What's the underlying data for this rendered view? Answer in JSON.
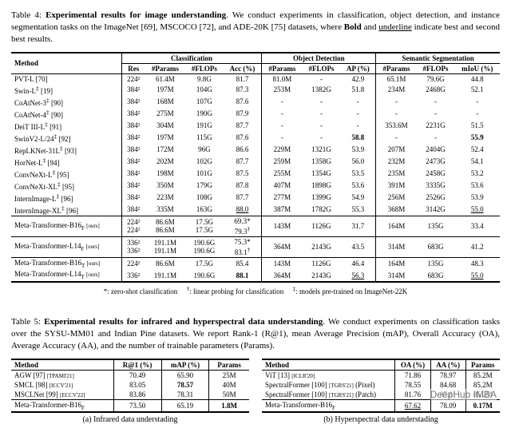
{
  "table4": {
    "caption": "Table 4: <b>Experimental results for image understanding</b>. We conduct experiments in classification, object detection, and instance segmentation tasks on the ImageNet [69], MSCOCO [72], and ADE-20K [75] datasets, where <b>Bold</b> and <u>underline</u> indicate best and second best results.",
    "colgroups": [
      "Classification",
      "Object Detection",
      "Semantic Segmentation"
    ],
    "cols_cls": [
      "Res",
      "#Params",
      "#FLOPs",
      "Acc (%)"
    ],
    "cols_det": [
      "#Params",
      "#FLOPs",
      "AP (%)"
    ],
    "cols_seg": [
      "#Params",
      "#FLOPs",
      "mIoU (%)"
    ],
    "rows": [
      {
        "m": "PVT-L [70]",
        "r": "224²",
        "p": "61.4M",
        "f": "9.8G",
        "a": "81.7",
        "dp": "81.0M",
        "df": "-",
        "da": "42.9",
        "sp": "65.1M",
        "sf": "79.6G",
        "si": "44.8"
      },
      {
        "m": "Swin-L<sup>‡</sup> [19]",
        "r": "384²",
        "p": "197M",
        "f": "104G",
        "a": "87.3",
        "dp": "253M",
        "df": "1382G",
        "da": "51.8",
        "sp": "234M",
        "sf": "2468G",
        "si": "52.1"
      },
      {
        "m": "CoAtNet-3<sup>‡</sup> [90]",
        "r": "384²",
        "p": "168M",
        "f": "107G",
        "a": "87.6",
        "dp": "-",
        "df": "-",
        "da": "-",
        "sp": "-",
        "sf": "-",
        "si": "-"
      },
      {
        "m": "CoAtNet-4<sup>‡</sup> [90]",
        "r": "384²",
        "p": "275M",
        "f": "190G",
        "a": "87.9",
        "dp": "-",
        "df": "-",
        "da": "-",
        "sp": "-",
        "sf": "-",
        "si": "-"
      },
      {
        "m": "DeiT III-L<sup>‡</sup> [91]",
        "r": "384²",
        "p": "304M",
        "f": "191G",
        "a": "87.7",
        "dp": "-",
        "df": "-",
        "da": "-",
        "sp": "353.6M",
        "sf": "2231G",
        "si": "51.5"
      },
      {
        "m": "SwinV2-L/24<sup>‡</sup> [92]",
        "r": "384²",
        "p": "197M",
        "f": "115G",
        "a": "87.6",
        "dp": "-",
        "df": "-",
        "da": "<b>58.8</b>",
        "sp": "-",
        "sf": "-",
        "si": "<b>55.9</b>"
      },
      {
        "m": "RepLKNet-31L<sup>‡</sup> [93]",
        "r": "384²",
        "p": "172M",
        "f": "96G",
        "a": "86.6",
        "dp": "229M",
        "df": "1321G",
        "da": "53.9",
        "sp": "207M",
        "sf": "2404G",
        "si": "52.4"
      },
      {
        "m": "HorNet-L<sup>‡</sup> [94]",
        "r": "384²",
        "p": "202M",
        "f": "102G",
        "a": "87.7",
        "dp": "259M",
        "df": "1358G",
        "da": "56.0",
        "sp": "232M",
        "sf": "2473G",
        "si": "54.1"
      },
      {
        "m": "ConvNeXt-L<sup>‡</sup> [95]",
        "r": "384²",
        "p": "198M",
        "f": "101G",
        "a": "87.5",
        "dp": "255M",
        "df": "1354G",
        "da": "53.5",
        "sp": "235M",
        "sf": "2458G",
        "si": "53.2"
      },
      {
        "m": "ConvNeXt-XL<sup>‡</sup> [95]",
        "r": "384²",
        "p": "350M",
        "f": "179G",
        "a": "87.8",
        "dp": "407M",
        "df": "1898G",
        "da": "53.6",
        "sp": "391M",
        "sf": "3335G",
        "si": "53.6"
      },
      {
        "m": "InternImage-L<sup>‡</sup> [96]",
        "r": "384²",
        "p": "223M",
        "f": "108G",
        "a": "87.7",
        "dp": "277M",
        "df": "1399G",
        "da": "54.9",
        "sp": "256M",
        "sf": "2526G",
        "si": "53.9"
      },
      {
        "m": "InternImage-XL<sup>‡</sup> [96]",
        "r": "384²",
        "p": "335M",
        "f": "163G",
        "a": "<u>88.0</u>",
        "dp": "387M",
        "df": "1782G",
        "da": "55.3",
        "sp": "368M",
        "sf": "3142G",
        "si": "<u>55.0</u>",
        "rule": true
      },
      {
        "m": "Meta-Transformer-B16<sub>F</sub> <span class=\"sub7\">[ours]</span>",
        "r": "224²<br>224²",
        "p": "86.6M<br>86.6M",
        "f": "17.5G<br>17.5G",
        "a": "69.3*<br>79.3<sup>†</sup>",
        "dp": "143M",
        "df": "1126G",
        "da": "31.7",
        "sp": "164M",
        "sf": "135G",
        "si": "33.4",
        "rule": true
      },
      {
        "m": "Meta-Transformer-L14<sub>F</sub> <span class=\"sub7\">[ours]</span>",
        "r": "336²<br>336²",
        "p": "191.1M<br>191.1M",
        "f": "190.6G<br>190.6G",
        "a": "75.3*<br>83.1<sup>†</sup>",
        "dp": "364M",
        "df": "2143G",
        "da": "43.5",
        "sp": "314M",
        "sf": "683G",
        "si": "41.2",
        "rule": true
      },
      {
        "m": "Meta-Transformer-B16<sub>T</sub> <span class=\"sub7\">[ours]</span>",
        "r": "224²",
        "p": "86.6M",
        "f": "17.5G",
        "a": "85.4",
        "dp": "143M",
        "df": "1126G",
        "da": "46.4",
        "sp": "164M",
        "sf": "135G",
        "si": "48.3"
      },
      {
        "m": "Meta-Transformer-L14<sub>T</sub> <span class=\"sub7\">[ours]</span>",
        "r": "336²",
        "p": "191.1M",
        "f": "190.6G",
        "a": "<b>88.1</b>",
        "dp": "364M",
        "df": "2143G",
        "da": "<u>56.3</u>",
        "sp": "314M",
        "sf": "683G",
        "si": "<u>55.0</u>"
      }
    ],
    "footnote": "*: zero-shot classification &nbsp;&nbsp;&nbsp; <sup>†</sup>: linear probing for classification &nbsp;&nbsp;&nbsp; <sup>‡</sup>: models pre-trained on ImageNet-22K"
  },
  "table5": {
    "caption": "Table 5: <b>Experimental results for infrared and hyperspectral data understanding</b>. We conduct experiments on classification tasks over the SYSU-MM01 and Indian Pine datasets. We report Rank-1 (R@1), mean Average Precision (mAP), Overall Accuracy (OA), Average Accuracy (AA), and the number of trainable parameters (Params).",
    "left": {
      "cols": [
        "Method",
        "R@1 (%)",
        "mAP (%)",
        "Params"
      ],
      "rows": [
        {
          "m": "AGW [97] <span class=\"sub7\">[TPAMI'21]</span>",
          "a": "70.49",
          "b": "65.90",
          "c": "25M"
        },
        {
          "m": "SMCL [98] <span class=\"sub7\">[ICCV'21]</span>",
          "a": "83.05",
          "b": "<b>78.57</b>",
          "c": "40M"
        },
        {
          "m": "MSCLNet [99] <span class=\"sub7\">[ECCV'22]</span>",
          "a": "83.86",
          "b": "78.31",
          "c": "50M",
          "rule": true
        },
        {
          "m": "Meta-Transformer-B16<sub>F</sub>",
          "a": "73.50",
          "b": "65.19",
          "c": "<b>1.8M</b>"
        }
      ],
      "subcap": "(a) Infrared data understading"
    },
    "right": {
      "cols": [
        "Method",
        "OA (%)",
        "AA (%)",
        "Params"
      ],
      "rows": [
        {
          "m": "ViT [13] <span class=\"sub7\">[ICLR'20]</span>",
          "a": "71.86",
          "b": "78.97",
          "c": "85.2M"
        },
        {
          "m": "SpectralFormer [100] <span class=\"sub7\">[TGRS'21]</span> (Pixel)",
          "a": "78.55",
          "b": "84.68",
          "c": "85.2M"
        },
        {
          "m": "SpectralFormer [100] <span class=\"sub7\">[TGRS'21]</span> (Patch)",
          "a": "81.76",
          "b": "87.81",
          "c": "85.2M",
          "rule": true
        },
        {
          "m": "Meta-Transformer-B16<sub>F</sub>",
          "a": "<u>67.62</u>",
          "b": "78.09",
          "c": "<b>0.17M</b>"
        }
      ],
      "subcap": "(b) Hyperspectral data understading"
    }
  },
  "watermark": "DeepHub IMBA"
}
